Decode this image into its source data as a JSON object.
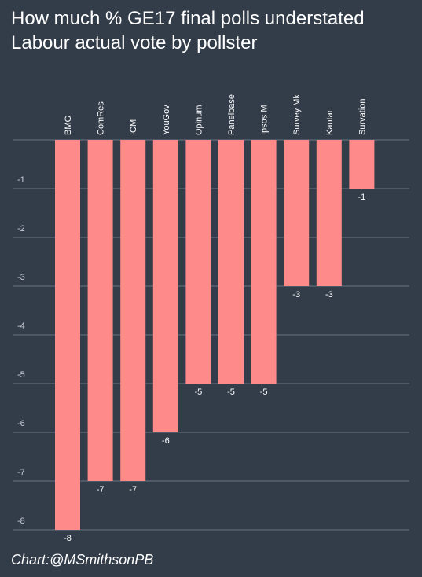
{
  "title_lines": [
    "How much % GE17 final polls understated",
    "Labour actual vote by pollster"
  ],
  "credit": "Chart:@MSmithsonPB",
  "colors": {
    "background": "#333d4a",
    "bar": "#ff8a8a",
    "grid": "#6a7482"
  },
  "chart_data": {
    "type": "bar",
    "categories": [
      "BMG",
      "ComRes",
      "ICM",
      "YouGov",
      "Opinum",
      "Panelbase",
      "Ipsos M",
      "Survey Mk",
      "Kantar",
      "Survation"
    ],
    "values": [
      -8,
      -7,
      -7,
      -6,
      -5,
      -5,
      -5,
      -3,
      -3,
      -1
    ],
    "data_labels": [
      "-8",
      "-7",
      "-7",
      "-6",
      "-5",
      "-5",
      "-5",
      "-3",
      "-3",
      "-1"
    ],
    "y_ticks": [
      -1,
      -2,
      -3,
      -4,
      -5,
      -6,
      -7,
      -8
    ],
    "y_tick_labels": [
      "-1",
      "-2",
      "-3",
      "-4",
      "-5",
      "-6",
      "-7",
      "-8"
    ],
    "ylim": [
      -8,
      0
    ],
    "grid": true,
    "legend": "none",
    "category_label_position": "top-rotated"
  }
}
